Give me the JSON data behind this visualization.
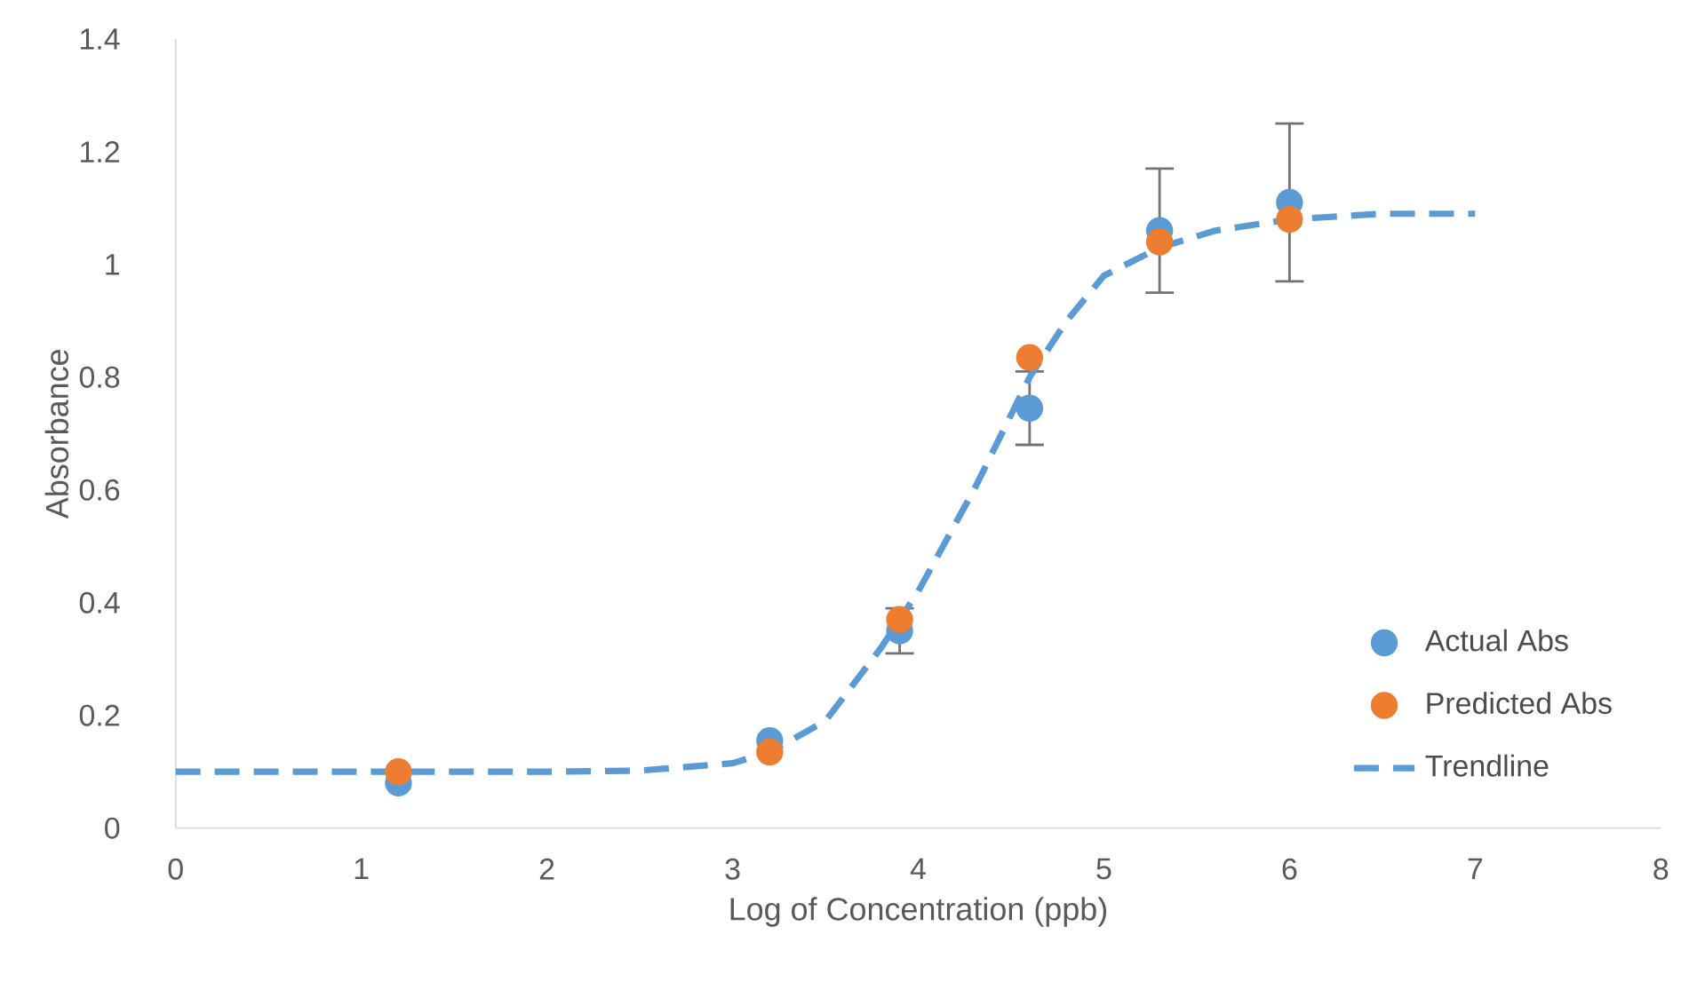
{
  "chart_data": {
    "type": "scatter",
    "xlabel": "Log of Concentration (ppb)",
    "ylabel": "Absorbance",
    "xlim": [
      0,
      8
    ],
    "xticks": [
      0,
      1,
      2,
      3,
      4,
      5,
      6,
      7,
      8
    ],
    "ylim": [
      0,
      1.4
    ],
    "yticks": [
      0,
      0.2,
      0.4,
      0.6,
      0.8,
      1,
      1.2,
      1.4
    ],
    "grid": false,
    "legend": "bottom right",
    "marker": "circle",
    "series": [
      {
        "name": "Actual Abs",
        "color": "#5b9bd5",
        "x": [
          1.2,
          3.2,
          3.9,
          4.6,
          5.3,
          6.0
        ],
        "values": [
          0.08,
          0.155,
          0.35,
          0.745,
          1.06,
          1.11
        ],
        "errors": [
          null,
          null,
          0.04,
          0.065,
          0.11,
          0.14
        ]
      },
      {
        "name": "Predicted Abs",
        "color": "#ed7d31",
        "x": [
          1.2,
          3.2,
          3.9,
          4.6,
          5.3,
          6.0
        ],
        "values": [
          0.1,
          0.135,
          0.37,
          0.835,
          1.04,
          1.08
        ]
      },
      {
        "name": "Trendline",
        "type": "line",
        "color": "#5b9bd5",
        "marker": "none",
        "line_style": "dashed",
        "x": [
          0,
          1,
          2,
          2.5,
          3,
          3.2,
          3.5,
          3.8,
          4.0,
          4.3,
          4.6,
          4.8,
          5.0,
          5.3,
          5.6,
          6.0,
          6.5,
          7.0
        ],
        "values": [
          0.1,
          0.1,
          0.1,
          0.102,
          0.115,
          0.135,
          0.19,
          0.32,
          0.42,
          0.6,
          0.8,
          0.9,
          0.98,
          1.03,
          1.06,
          1.08,
          1.09,
          1.09
        ]
      }
    ]
  }
}
